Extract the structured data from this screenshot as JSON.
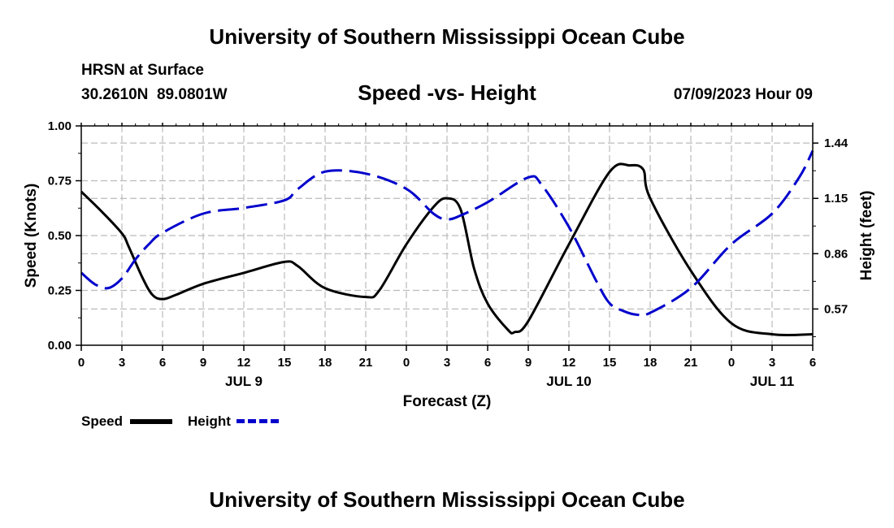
{
  "header": {
    "title": "University of Southern Mississippi Ocean Cube",
    "station": "HRSN at Surface",
    "coords": "30.2610N  89.0801W",
    "chart_title": "Speed -vs- Height",
    "date": "07/09/2023 Hour 09"
  },
  "footer": {
    "title": "University of Southern Mississippi Ocean Cube"
  },
  "legend": {
    "speed_label": "Speed",
    "height_label": "Height"
  },
  "colors": {
    "speed": "#000000",
    "height": "#0000cc",
    "grid": "#bbbbbb"
  },
  "chart_data": {
    "type": "line",
    "title": "Speed -vs- Height",
    "xlabel": "Forecast (Z)",
    "ylabel_left": "Speed (Knots)",
    "ylabel_right": "Height (feet)",
    "x_range": [
      0,
      54
    ],
    "x_ticks": [
      0,
      3,
      6,
      9,
      12,
      15,
      18,
      21,
      24,
      27,
      30,
      33,
      36,
      39,
      42,
      45,
      48,
      51,
      54
    ],
    "x_tick_labels": [
      "0",
      "3",
      "6",
      "9",
      "12",
      "15",
      "18",
      "21",
      "0",
      "3",
      "6",
      "9",
      "12",
      "15",
      "18",
      "21",
      "0",
      "3",
      "6"
    ],
    "day_labels": [
      {
        "label": "JUL 9",
        "x": 12
      },
      {
        "label": "JUL 10",
        "x": 36
      },
      {
        "label": "JUL 11",
        "x": 51
      }
    ],
    "ylim_left": [
      0,
      1.0
    ],
    "yticks_left": [
      0,
      0.25,
      0.5,
      0.75,
      1.0
    ],
    "yticks_left_labels": [
      "0.00",
      "0.25",
      "0.50",
      "0.75",
      "1.00"
    ],
    "ylim_right": [
      0.38,
      1.53
    ],
    "yticks_right": [
      0.57,
      0.86,
      1.15,
      1.44
    ],
    "yticks_right_labels": [
      "0.57",
      "0.86",
      "1.15",
      "1.44"
    ],
    "series": [
      {
        "name": "Speed",
        "axis": "left",
        "x": [
          0,
          1.5,
          3,
          3.5,
          4.5,
          5.25,
          6,
          7,
          9,
          12,
          15,
          16,
          18,
          21,
          22,
          24,
          26,
          27,
          28,
          29,
          30,
          31.5,
          32,
          33,
          36,
          39,
          40.5,
          41.5,
          42,
          45,
          48,
          51,
          54
        ],
        "values": [
          0.7,
          0.61,
          0.51,
          0.45,
          0.31,
          0.23,
          0.21,
          0.23,
          0.28,
          0.33,
          0.38,
          0.36,
          0.26,
          0.22,
          0.25,
          0.46,
          0.63,
          0.67,
          0.62,
          0.35,
          0.19,
          0.07,
          0.06,
          0.11,
          0.46,
          0.79,
          0.82,
          0.8,
          0.67,
          0.34,
          0.1,
          0.05,
          0.05
        ]
      },
      {
        "name": "Height",
        "axis": "right",
        "x": [
          0,
          1,
          2,
          3,
          4,
          5,
          6,
          9,
          12,
          15,
          16,
          18,
          21,
          24,
          26,
          27,
          28,
          30,
          33,
          34,
          36,
          38,
          39,
          40,
          41,
          42,
          45,
          48,
          51,
          53,
          54
        ],
        "values": [
          0.76,
          0.7,
          0.68,
          0.73,
          0.83,
          0.91,
          0.97,
          1.07,
          1.1,
          1.14,
          1.2,
          1.29,
          1.28,
          1.2,
          1.07,
          1.04,
          1.06,
          1.13,
          1.26,
          1.22,
          1.0,
          0.72,
          0.6,
          0.56,
          0.54,
          0.55,
          0.68,
          0.91,
          1.07,
          1.26,
          1.4
        ]
      }
    ]
  }
}
